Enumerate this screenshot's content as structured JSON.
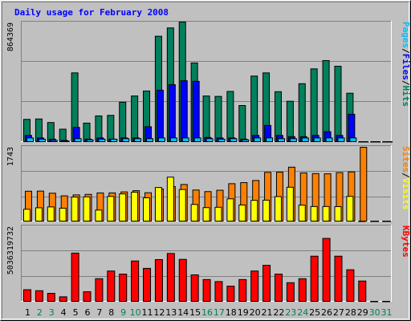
{
  "title": "Daily usage for February 2008",
  "colors": {
    "hits": "#00805c",
    "files": "#0000ff",
    "pages": "#00c0ff",
    "visits": "#ffff00",
    "sites": "#ff8000",
    "kbytes": "#ff0000",
    "title": "#0000ff",
    "weekday": "#000000",
    "weekend": "#00805c"
  },
  "chart_data": [
    {
      "type": "bar",
      "ymax_label": "864369",
      "legend": [
        {
          "text": "Pages",
          "color": "#00c0ff"
        },
        {
          "text": "/",
          "color": "#000000"
        },
        {
          "text": "Files",
          "color": "#0000ff"
        },
        {
          "text": "/",
          "color": "#000000"
        },
        {
          "text": "Hits",
          "color": "#00805c"
        }
      ],
      "ylim": [
        0,
        864369
      ],
      "series": [
        {
          "key": "hits",
          "values": [
            161000,
            164000,
            138000,
            90000,
            497000,
            134000,
            186000,
            190000,
            285000,
            330000,
            366000,
            762000,
            822000,
            864369,
            569000,
            330000,
            327000,
            363000,
            261000,
            474000,
            497000,
            361000,
            292000,
            419000,
            526000,
            586000,
            545000,
            350000,
            0,
            0,
            0
          ]
        },
        {
          "key": "files",
          "values": [
            45000,
            27000,
            18000,
            9000,
            103000,
            18000,
            27000,
            18000,
            27000,
            27000,
            108000,
            372000,
            412000,
            440000,
            436000,
            30000,
            27000,
            27000,
            18000,
            45000,
            117000,
            45000,
            36000,
            36000,
            45000,
            72000,
            45000,
            198000,
            0,
            0,
            0
          ]
        },
        {
          "key": "pages",
          "values": [
            27000,
            18000,
            9000,
            4000,
            22000,
            13000,
            18000,
            18000,
            22000,
            22000,
            22000,
            27000,
            27000,
            27000,
            27000,
            22000,
            18000,
            22000,
            13000,
            27000,
            27000,
            22000,
            22000,
            27000,
            27000,
            27000,
            27000,
            27000,
            0,
            0,
            0
          ]
        }
      ]
    },
    {
      "type": "bar",
      "ymax_label": "1743",
      "legend": [
        {
          "text": "Sites",
          "color": "#ff8000"
        },
        {
          "text": "/",
          "color": "#000000"
        },
        {
          "text": "Visits",
          "color": "#ffff00"
        }
      ],
      "ylim": [
        0,
        1743
      ],
      "series": [
        {
          "key": "sites",
          "values": [
            705,
            708,
            658,
            596,
            618,
            630,
            665,
            665,
            689,
            718,
            669,
            758,
            815,
            864,
            733,
            696,
            728,
            883,
            908,
            958,
            1150,
            1155,
            1273,
            1137,
            1121,
            1116,
            1145,
            1161,
            1743,
            0,
            0
          ]
        },
        {
          "key": "visits",
          "values": [
            279,
            314,
            334,
            305,
            568,
            572,
            260,
            582,
            641,
            683,
            549,
            793,
            1037,
            745,
            392,
            318,
            326,
            525,
            380,
            489,
            494,
            578,
            799,
            376,
            344,
            344,
            341,
            583,
            0,
            0,
            0
          ]
        }
      ]
    },
    {
      "type": "bar",
      "ymax_label": "5036319732",
      "legend": [
        {
          "text": "KBytes",
          "color": "#ff0000"
        }
      ],
      "ylim": [
        0,
        5036319732
      ],
      "series": [
        {
          "key": "kbytes",
          "values": [
            786000000,
            718000000,
            539000000,
            306000000,
            3255000000,
            647000000,
            1528000000,
            2047000000,
            1838000000,
            2724000000,
            2225000000,
            2817000000,
            3230000000,
            2832000000,
            1787000000,
            1470000000,
            1333000000,
            1025000000,
            1470000000,
            2047000000,
            2431000000,
            1838000000,
            1258000000,
            1528000000,
            3047000000,
            4247000000,
            3047000000,
            2131000000,
            1370000000,
            0,
            0
          ]
        }
      ]
    }
  ],
  "days": [
    "1",
    "2",
    "3",
    "4",
    "5",
    "6",
    "7",
    "8",
    "9",
    "10",
    "11",
    "12",
    "13",
    "14",
    "15",
    "16",
    "17",
    "18",
    "19",
    "20",
    "21",
    "22",
    "23",
    "24",
    "25",
    "26",
    "27",
    "28",
    "29",
    "30",
    "31"
  ],
  "weekend_days": [
    2,
    3,
    9,
    10,
    16,
    17,
    23,
    24,
    30,
    31
  ]
}
